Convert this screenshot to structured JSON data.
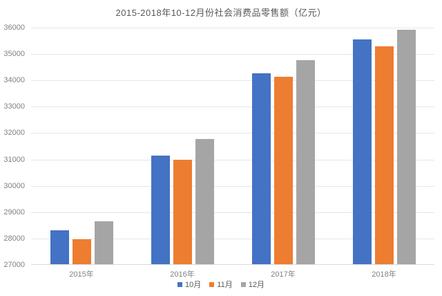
{
  "title": "2015-2018年10-12月份社会消费品零售额（亿元）",
  "chart_data": {
    "type": "bar",
    "title": "2015-2018年10-12月份社会消费品零售额（亿元）",
    "categories": [
      "2015年",
      "2016年",
      "2017年",
      "2018年"
    ],
    "series": [
      {
        "name": "10月",
        "color": "#4472C4",
        "values": [
          28279,
          31119,
          34241,
          35534
        ]
      },
      {
        "name": "11月",
        "color": "#ED7D31",
        "values": [
          27938,
          30959,
          34108,
          35260
        ]
      },
      {
        "name": "12月",
        "color": "#A5A5A5",
        "values": [
          28635,
          31757,
          34734,
          35893
        ]
      }
    ],
    "xlabel": "",
    "ylabel": "",
    "ylim": [
      27000,
      36000
    ],
    "ytick_step": 1000,
    "yticks": [
      "27000",
      "28000",
      "29000",
      "30000",
      "31000",
      "32000",
      "33000",
      "34000",
      "35000",
      "36000"
    ],
    "grid": true,
    "legend_position": "bottom",
    "colors": {
      "background": "#FFFFFF",
      "grid": "#E6E6E6",
      "axis_line": "#D9D9D9",
      "title_text": "#595959",
      "axis_text": "#808080",
      "legend_text": "#595959"
    }
  }
}
